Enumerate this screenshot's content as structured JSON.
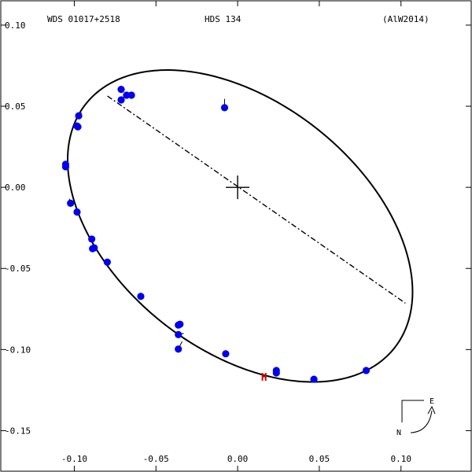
{
  "header": {
    "left": "WDS 01017+2518",
    "center": "HDS 134",
    "right": "(AlW2014)"
  },
  "compass": {
    "east": "E",
    "north": "N"
  },
  "chart_data": {
    "type": "scatter",
    "title": "",
    "xlabel": "",
    "ylabel": "",
    "xlim": [
      -0.145,
      0.143
    ],
    "ylim": [
      -0.175,
      0.115
    ],
    "x_ticks": [
      -0.1,
      -0.05,
      0.0,
      0.05,
      0.1
    ],
    "x_tick_labels": [
      "-0.10",
      "-0.05",
      "0.00",
      "0.05",
      "0.10"
    ],
    "y_ticks": [
      0.1,
      0.05,
      0.0,
      -0.05,
      -0.1,
      -0.15
    ],
    "y_tick_labels": [
      "0.10",
      "0.05",
      "0.00",
      "-0.05",
      "-0.10",
      "-0.15"
    ],
    "grid": false,
    "point_color": "#0000ee",
    "marker_color": "#dd0000",
    "center": {
      "x": 0.0,
      "y": 0.0
    },
    "line_of_nodes": [
      [
        -0.0797,
        0.0563
      ],
      [
        0.1027,
        -0.0714
      ]
    ],
    "periastron_marker": {
      "label": "H",
      "x": 0.0162,
      "y": -0.1168
    },
    "observations": [
      {
        "x": -0.0713,
        "y": 0.0604,
        "ox": -0.071,
        "oy": 0.0598
      },
      {
        "x": -0.0713,
        "y": 0.0539,
        "ox": -0.0718,
        "oy": 0.0555
      },
      {
        "x": -0.068,
        "y": 0.0568,
        "ox": -0.069,
        "oy": 0.0579
      },
      {
        "x": -0.065,
        "y": 0.0568,
        "ox": -0.066,
        "oy": 0.0585
      },
      {
        "x": -0.008,
        "y": 0.0491,
        "ox": -0.008,
        "oy": 0.0545
      },
      {
        "x": -0.0973,
        "y": 0.0441,
        "ox": -0.0955,
        "oy": 0.046
      },
      {
        "x": -0.0983,
        "y": 0.0378,
        "ox": -0.0985,
        "oy": 0.04
      },
      {
        "x": -0.0978,
        "y": 0.0373,
        "ox": -0.099,
        "oy": 0.039
      },
      {
        "x": -0.1053,
        "y": 0.0142,
        "ox": -0.105,
        "oy": 0.015
      },
      {
        "x": -0.1053,
        "y": 0.0127,
        "ox": -0.1053,
        "oy": 0.013
      },
      {
        "x": -0.1023,
        "y": -0.0098,
        "ox": -0.103,
        "oy": -0.007
      },
      {
        "x": -0.0983,
        "y": -0.0152,
        "ox": -0.1,
        "oy": -0.014
      },
      {
        "x": -0.0893,
        "y": -0.0319,
        "ox": -0.09,
        "oy": -0.03
      },
      {
        "x": -0.0878,
        "y": -0.0373,
        "ox": -0.089,
        "oy": -0.034
      },
      {
        "x": -0.0888,
        "y": -0.0378,
        "ox": -0.088,
        "oy": -0.035
      },
      {
        "x": -0.0798,
        "y": -0.0461,
        "ox": -0.081,
        "oy": -0.045
      },
      {
        "x": -0.0593,
        "y": -0.0672,
        "ox": -0.06,
        "oy": -0.066
      },
      {
        "x": -0.0353,
        "y": -0.0844,
        "ox": -0.0365,
        "oy": -0.083
      },
      {
        "x": -0.0363,
        "y": -0.0849,
        "ox": -0.037,
        "oy": -0.084
      },
      {
        "x": -0.0363,
        "y": -0.0908,
        "ox": -0.033,
        "oy": -0.09
      },
      {
        "x": -0.0363,
        "y": -0.0997,
        "ox": -0.034,
        "oy": -0.095
      },
      {
        "x": -0.0073,
        "y": -0.1026,
        "ox": -0.0073,
        "oy": -0.103
      },
      {
        "x": 0.0237,
        "y": -0.1129,
        "ox": 0.0235,
        "oy": -0.1145
      },
      {
        "x": 0.0237,
        "y": -0.1144,
        "ox": 0.023,
        "oy": -0.115
      },
      {
        "x": 0.0467,
        "y": -0.1183,
        "ox": 0.046,
        "oy": -0.1185
      },
      {
        "x": 0.0787,
        "y": -0.1129,
        "ox": 0.079,
        "oy": -0.114
      }
    ]
  }
}
